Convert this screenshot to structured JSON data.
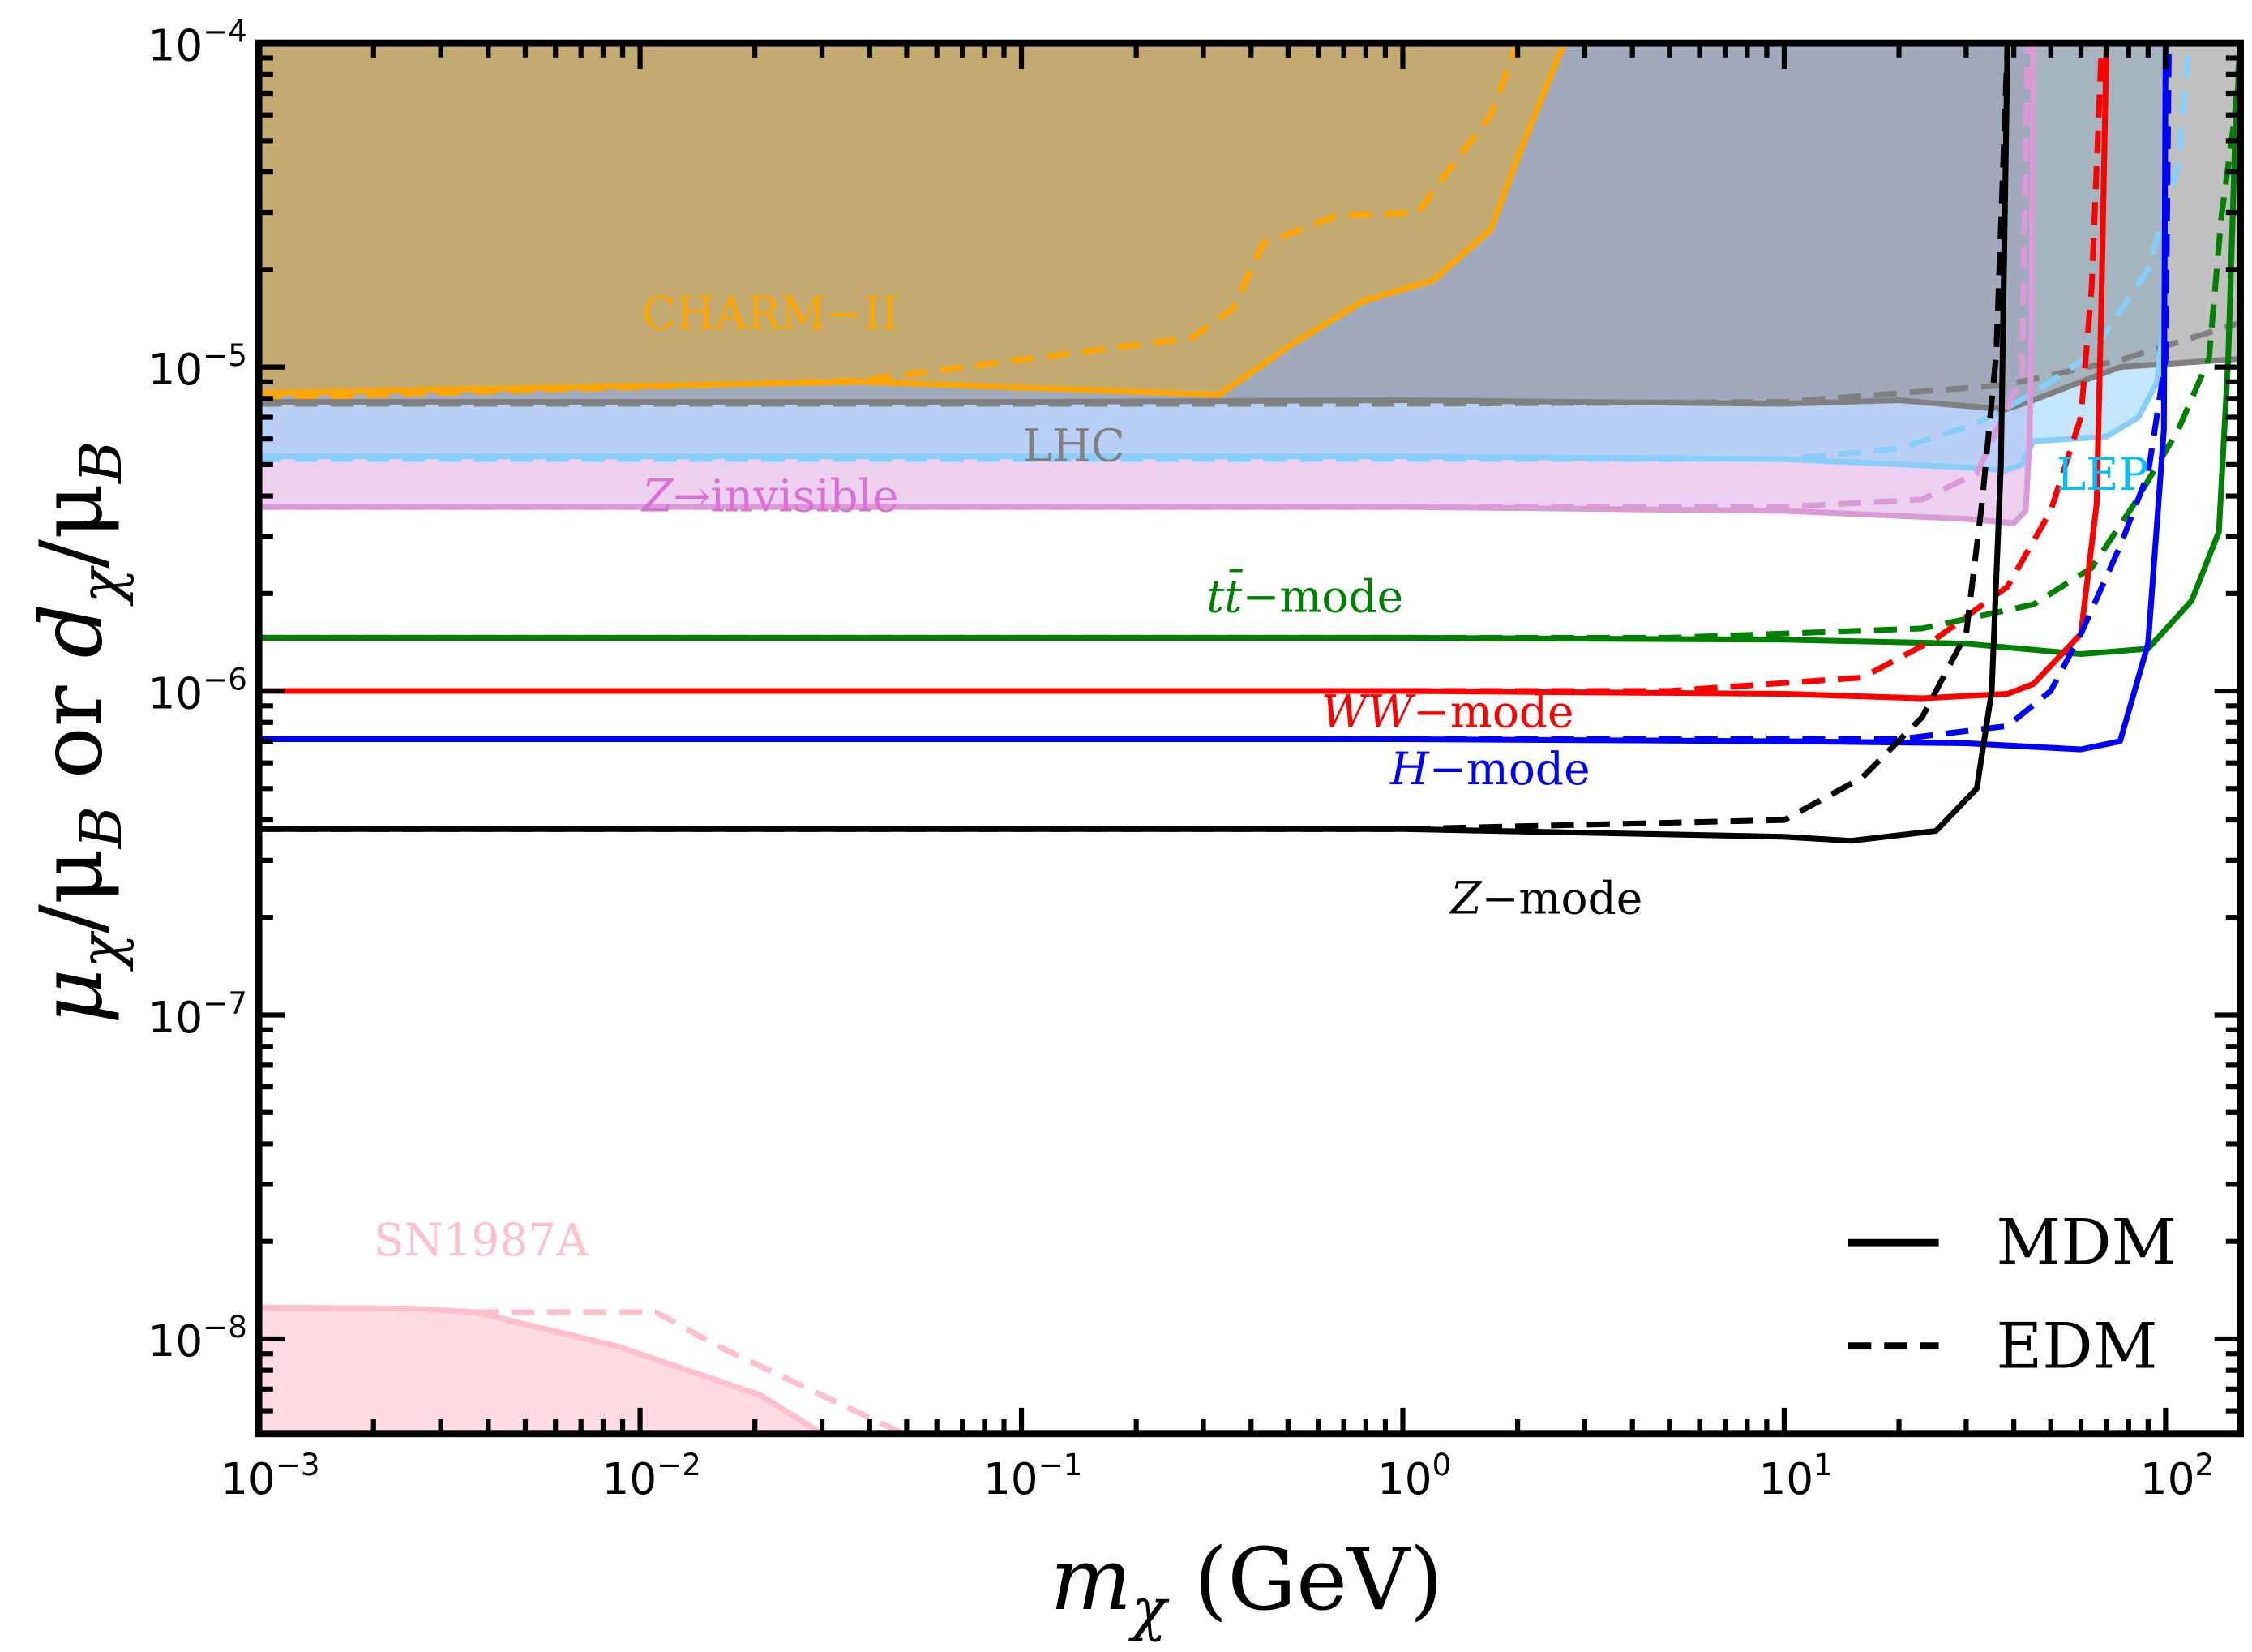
{
  "chart_data": {
    "type": "line",
    "xlabel": {
      "var": "m",
      "sub": "χ",
      "unit": " (GeV)"
    },
    "ylabel": {
      "num1": "μ",
      "sub1": "χ",
      "den1": "/μ",
      "subd1": "B",
      "or": " or ",
      "num2": "d",
      "sub2": "χ",
      "den2": "/μ",
      "subd2": "B"
    },
    "xscale": "log",
    "yscale": "log",
    "xlim": [
      0.001,
      157
    ],
    "ylim": [
      5.1e-09,
      0.0001
    ],
    "xticks": [
      {
        "base": "10",
        "exp": "-3",
        "v": 0.001
      },
      {
        "base": "10",
        "exp": "-2",
        "v": 0.01
      },
      {
        "base": "10",
        "exp": "-1",
        "v": 0.1
      },
      {
        "base": "10",
        "exp": "0",
        "v": 1
      },
      {
        "base": "10",
        "exp": "1",
        "v": 10
      },
      {
        "base": "10",
        "exp": "2",
        "v": 100
      }
    ],
    "yticks": [
      {
        "base": "10",
        "exp": "-8",
        "v": 1e-08
      },
      {
        "base": "10",
        "exp": "-7",
        "v": 1e-07
      },
      {
        "base": "10",
        "exp": "-6",
        "v": 1e-06
      },
      {
        "base": "10",
        "exp": "-5",
        "v": 1e-05
      },
      {
        "base": "10",
        "exp": "-4",
        "v": 0.0001
      }
    ],
    "colors": {
      "charm": "#ffa500",
      "lhc": "#808080",
      "lep": "#87cefa",
      "zinv": "#da9ad8",
      "sn": "#ffc0cb",
      "tt": "#008000",
      "ww": "#ff0000",
      "h": "#0000ff",
      "z": "#000000"
    },
    "regions": [
      {
        "name": "z-invisible",
        "fill": "rgba(214,150,222,0.45)",
        "edge": [
          [
            0.001,
            3.7e-06
          ],
          [
            1,
            3.7e-06
          ],
          [
            10,
            3.6e-06
          ],
          [
            30,
            3.4e-06
          ],
          [
            40,
            3.3e-06
          ],
          [
            43,
            3.6e-06
          ],
          [
            44,
            6e-06
          ],
          [
            44.5,
            1.3e-05
          ],
          [
            45,
            0.0001
          ]
        ]
      },
      {
        "name": "lep",
        "fill": "rgba(135,206,250,0.5)",
        "edge": [
          [
            0.001,
            5.3e-06
          ],
          [
            1,
            5.3e-06
          ],
          [
            10,
            5.2e-06
          ],
          [
            30,
            4.9e-06
          ],
          [
            38,
            4.8e-06
          ],
          [
            42,
            5e-06
          ],
          [
            45,
            5.9e-06
          ],
          [
            70,
            6.1e-06
          ],
          [
            85,
            7e-06
          ],
          [
            95,
            9e-06
          ],
          [
            99,
            1.4e-05
          ],
          [
            100,
            0.0001
          ]
        ]
      },
      {
        "name": "lhc",
        "fill": "rgba(140,140,140,0.55)",
        "edge": [
          [
            0.001,
            7.8e-06
          ],
          [
            0.1,
            7.8e-06
          ],
          [
            1,
            7.9e-06
          ],
          [
            3,
            7.8e-06
          ],
          [
            10,
            7.7e-06
          ],
          [
            20,
            7.9e-06
          ],
          [
            38,
            7.4e-06
          ],
          [
            45,
            7.9e-06
          ],
          [
            60,
            9e-06
          ],
          [
            76,
            1e-05
          ],
          [
            110,
            1.03e-05
          ],
          [
            157,
            1.06e-05
          ]
        ]
      },
      {
        "name": "charm-ii",
        "fill": "rgba(214,170,70,0.65)",
        "edge": [
          [
            0.001,
            8.3e-06
          ],
          [
            0.038,
            9e-06
          ],
          [
            0.33,
            8.2e-06
          ],
          [
            0.51,
            1.17e-05
          ],
          [
            0.79,
            1.6e-05
          ],
          [
            1.2,
            1.85e-05
          ],
          [
            1.7,
            2.65e-05
          ],
          [
            2.0,
            4.4e-05
          ],
          [
            2.65,
            0.0001
          ]
        ]
      },
      {
        "name": "sn1987a",
        "fill": "rgba(255,192,203,0.55)",
        "edge": [
          [
            0.001,
            1.25e-08
          ],
          [
            0.0026,
            1.24e-08
          ],
          [
            0.0037,
            1.21e-08
          ],
          [
            0.0087,
            9.5e-09
          ],
          [
            0.0207,
            6.7e-09
          ],
          [
            0.03,
            5.1e-09
          ]
        ]
      }
    ],
    "series": [
      {
        "name": "CHARM-II MDM",
        "color": "#ffa500",
        "dash": false,
        "points": [
          [
            0.001,
            8.3e-06
          ],
          [
            0.038,
            9e-06
          ],
          [
            0.33,
            8.2e-06
          ],
          [
            0.51,
            1.17e-05
          ],
          [
            0.79,
            1.6e-05
          ],
          [
            1.2,
            1.85e-05
          ],
          [
            1.7,
            2.65e-05
          ],
          [
            2.0,
            4.4e-05
          ],
          [
            2.65,
            0.0001
          ]
        ]
      },
      {
        "name": "CHARM-II EDM",
        "color": "#ffa500",
        "dash": true,
        "points": [
          [
            0.001,
            8e-06
          ],
          [
            0.038,
            9.1e-06
          ],
          [
            0.28,
            1.23e-05
          ],
          [
            0.36,
            1.52e-05
          ],
          [
            0.43,
            2.4e-05
          ],
          [
            0.67,
            2.93e-05
          ],
          [
            1.1,
            3e-05
          ],
          [
            1.2,
            3.5e-05
          ],
          [
            1.7,
            6e-05
          ],
          [
            2.0,
            0.0001
          ]
        ]
      },
      {
        "name": "LHC MDM",
        "color": "#808080",
        "dash": false,
        "points": [
          [
            0.001,
            7.8e-06
          ],
          [
            0.1,
            7.8e-06
          ],
          [
            1,
            7.9e-06
          ],
          [
            3,
            7.8e-06
          ],
          [
            10,
            7.7e-06
          ],
          [
            20,
            7.9e-06
          ],
          [
            38,
            7.4e-06
          ],
          [
            45,
            7.9e-06
          ],
          [
            60,
            9e-06
          ],
          [
            76,
            1e-05
          ],
          [
            110,
            1.03e-05
          ],
          [
            157,
            1.06e-05
          ]
        ]
      },
      {
        "name": "LHC EDM",
        "color": "#808080",
        "dash": true,
        "points": [
          [
            0.001,
            7.7e-06
          ],
          [
            1,
            7.7e-06
          ],
          [
            10,
            7.8e-06
          ],
          [
            38,
            8.8e-06
          ],
          [
            76,
            1.05e-05
          ],
          [
            157,
            1.37e-05
          ]
        ]
      },
      {
        "name": "LEP MDM",
        "color": "#87cefa",
        "dash": false,
        "points": [
          [
            0.001,
            5.3e-06
          ],
          [
            1,
            5.3e-06
          ],
          [
            10,
            5.2e-06
          ],
          [
            30,
            4.9e-06
          ],
          [
            38,
            4.8e-06
          ],
          [
            42,
            5e-06
          ],
          [
            45,
            5.9e-06
          ],
          [
            70,
            6.1e-06
          ],
          [
            85,
            7e-06
          ],
          [
            95,
            9e-06
          ],
          [
            99,
            1.4e-05
          ],
          [
            100,
            0.0001
          ]
        ]
      },
      {
        "name": "LEP EDM",
        "color": "#87cefa",
        "dash": true,
        "points": [
          [
            0.001,
            5.2e-06
          ],
          [
            10,
            5.2e-06
          ],
          [
            20,
            5.6e-06
          ],
          [
            32,
            6.7e-06
          ],
          [
            45,
            8.3e-06
          ],
          [
            64,
            1.1e-05
          ],
          [
            90,
            2e-05
          ],
          [
            108,
            4.2e-05
          ],
          [
            115,
            0.0001
          ]
        ]
      },
      {
        "name": "Z-invisible MDM",
        "color": "#da9ad8",
        "dash": false,
        "points": [
          [
            0.001,
            3.7e-06
          ],
          [
            1,
            3.7e-06
          ],
          [
            10,
            3.6e-06
          ],
          [
            30,
            3.4e-06
          ],
          [
            40,
            3.3e-06
          ],
          [
            43,
            3.6e-06
          ],
          [
            44,
            6e-06
          ],
          [
            44.5,
            1.3e-05
          ],
          [
            45,
            0.0001
          ]
        ]
      },
      {
        "name": "Z-invisible EDM",
        "color": "#da9ad8",
        "dash": true,
        "points": [
          [
            0.001,
            3.7e-06
          ],
          [
            10,
            3.7e-06
          ],
          [
            23,
            3.9e-06
          ],
          [
            32,
            4.7e-06
          ],
          [
            42,
            9.4e-06
          ],
          [
            43,
            4.6e-05
          ],
          [
            43.5,
            0.0001
          ]
        ]
      },
      {
        "name": "tt-mode MDM",
        "color": "#008000",
        "dash": false,
        "points": [
          [
            0.001,
            1.46e-06
          ],
          [
            1,
            1.46e-06
          ],
          [
            10,
            1.44e-06
          ],
          [
            30,
            1.4e-06
          ],
          [
            60,
            1.3e-06
          ],
          [
            90,
            1.35e-06
          ],
          [
            117,
            1.9e-06
          ],
          [
            138,
            3.1e-06
          ],
          [
            146,
            1.06e-05
          ],
          [
            152,
            4.9e-05
          ],
          [
            157,
            0.0001
          ]
        ]
      },
      {
        "name": "tt-mode EDM",
        "color": "#008000",
        "dash": true,
        "points": [
          [
            0.001,
            1.46e-06
          ],
          [
            5,
            1.46e-06
          ],
          [
            23,
            1.56e-06
          ],
          [
            45,
            1.85e-06
          ],
          [
            64,
            2.4e-06
          ],
          [
            83,
            3.8e-06
          ],
          [
            108,
            6.4e-06
          ],
          [
            130,
            1.06e-05
          ],
          [
            140,
            2.9e-05
          ],
          [
            152,
            6e-05
          ],
          [
            157,
            0.0001
          ]
        ]
      },
      {
        "name": "WW-mode MDM",
        "color": "#ff0000",
        "dash": false,
        "points": [
          [
            0.001,
            1e-06
          ],
          [
            1,
            1e-06
          ],
          [
            10,
            9.8e-07
          ],
          [
            23,
            9.5e-07
          ],
          [
            38.5,
            9.8e-07
          ],
          [
            45,
            1.05e-06
          ],
          [
            60,
            1.5e-06
          ],
          [
            66,
            3.8e-06
          ],
          [
            68,
            1.76e-05
          ],
          [
            70,
            0.0001
          ]
        ]
      },
      {
        "name": "WW-mode EDM",
        "color": "#ff0000",
        "dash": true,
        "points": [
          [
            0.001,
            1e-06
          ],
          [
            5,
            1e-06
          ],
          [
            16,
            1.1e-06
          ],
          [
            25,
            1.45e-06
          ],
          [
            38.5,
            2.1e-06
          ],
          [
            50,
            3.6e-06
          ],
          [
            60,
            7e-06
          ],
          [
            64,
            1.76e-05
          ],
          [
            68,
            0.0001
          ]
        ]
      },
      {
        "name": "H-mode MDM",
        "color": "#0000ff",
        "dash": false,
        "points": [
          [
            0.001,
            7.1e-07
          ],
          [
            1,
            7.1e-07
          ],
          [
            10,
            7e-07
          ],
          [
            30,
            6.9e-07
          ],
          [
            60,
            6.6e-07
          ],
          [
            76,
            7e-07
          ],
          [
            90,
            1.4e-06
          ],
          [
            99,
            6.4e-06
          ],
          [
            100,
            0.0001
          ]
        ]
      },
      {
        "name": "H-mode EDM",
        "color": "#0000ff",
        "dash": true,
        "points": [
          [
            0.001,
            7.1e-07
          ],
          [
            20,
            7.1e-07
          ],
          [
            38.5,
            7.8e-07
          ],
          [
            50,
            1e-06
          ],
          [
            60,
            1.5e-06
          ],
          [
            76,
            2.8e-06
          ],
          [
            90,
            4.7e-06
          ],
          [
            100,
            1.06e-05
          ],
          [
            102,
            0.0001
          ]
        ]
      },
      {
        "name": "Z-mode MDM",
        "color": "#000000",
        "dash": false,
        "points": [
          [
            0.001,
            3.75e-07
          ],
          [
            1,
            3.75e-07
          ],
          [
            10,
            3.55e-07
          ],
          [
            15,
            3.45e-07
          ],
          [
            25,
            3.7e-07
          ],
          [
            32,
            5e-07
          ],
          [
            35,
            1e-06
          ],
          [
            37,
            5e-06
          ],
          [
            38.5,
            0.0001
          ]
        ]
      },
      {
        "name": "Z-mode EDM",
        "color": "#000000",
        "dash": true,
        "points": [
          [
            0.001,
            3.75e-07
          ],
          [
            1,
            3.75e-07
          ],
          [
            10,
            4e-07
          ],
          [
            16,
            5.4e-07
          ],
          [
            23,
            8.3e-07
          ],
          [
            30,
            1.5e-06
          ],
          [
            33,
            3.8e-06
          ],
          [
            36,
            1.1e-05
          ],
          [
            38.5,
            0.0001
          ]
        ]
      },
      {
        "name": "SN1987A MDM",
        "color": "#ffc0cb",
        "dash": false,
        "points": [
          [
            0.001,
            1.25e-08
          ],
          [
            0.0026,
            1.24e-08
          ],
          [
            0.0037,
            1.21e-08
          ],
          [
            0.0087,
            9.5e-09
          ],
          [
            0.0207,
            6.7e-09
          ],
          [
            0.03,
            5.1e-09
          ]
        ]
      },
      {
        "name": "SN1987A EDM",
        "color": "#ffc0cb",
        "dash": true,
        "points": [
          [
            0.0037,
            1.21e-08
          ],
          [
            0.011,
            1.21e-08
          ],
          [
            0.016,
            9.5e-09
          ],
          [
            0.049,
            5.1e-09
          ]
        ]
      }
    ],
    "annotations": {
      "charm": {
        "italic": "",
        "text": "CHARM−II"
      },
      "lhc": {
        "italic": "",
        "text": "LHC"
      },
      "zinv": {
        "italic": "Z",
        "text": "→invisible"
      },
      "lep": {
        "italic": "",
        "text": "LEP"
      },
      "tt": {
        "italic": "tt̄",
        "text": "−mode"
      },
      "ww": {
        "italic": "WW",
        "text": "−mode"
      },
      "h": {
        "italic": "H",
        "text": "−mode"
      },
      "z": {
        "italic": "Z",
        "text": "−mode"
      },
      "sn": {
        "italic": "",
        "text": "SN1987A"
      }
    },
    "legend": {
      "placement": "bottom-right",
      "items": [
        {
          "label": "MDM",
          "style": "solid"
        },
        {
          "label": "EDM",
          "style": "dashed"
        }
      ]
    }
  }
}
